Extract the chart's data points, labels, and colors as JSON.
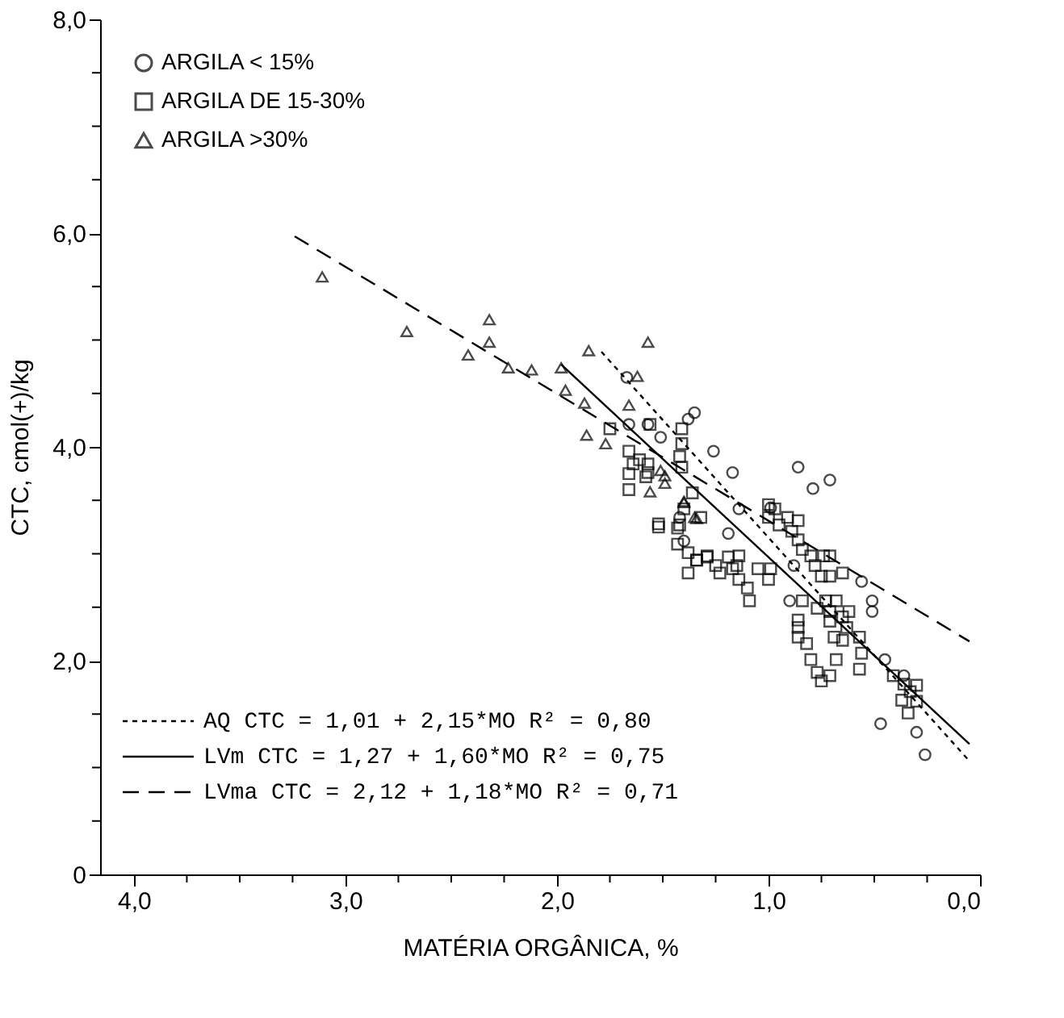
{
  "chart_data": {
    "type": "scatter",
    "xlabel": "MATÉRIA ORGÂNICA, %",
    "ylabel": "CTC, cmol(+)/kg",
    "xlim": [
      4.16,
      0.0
    ],
    "ylim": [
      0,
      8
    ],
    "xticks": [
      {
        "value": 4,
        "label": "4,0"
      },
      {
        "value": 3.75,
        "label": null
      },
      {
        "value": 3.5,
        "label": null
      },
      {
        "value": 3.25,
        "label": null
      },
      {
        "value": 3,
        "label": "3,0"
      },
      {
        "value": 2.75,
        "label": null
      },
      {
        "value": 2.5,
        "label": null
      },
      {
        "value": 2.25,
        "label": null
      },
      {
        "value": 2,
        "label": "2,0"
      },
      {
        "value": 1.75,
        "label": null
      },
      {
        "value": 1.5,
        "label": null
      },
      {
        "value": 1.25,
        "label": null
      },
      {
        "value": 1,
        "label": "1,0"
      },
      {
        "value": 0.75,
        "label": null
      },
      {
        "value": 0.5,
        "label": null
      },
      {
        "value": 0.25,
        "label": null
      },
      {
        "value": 0,
        "label": "0,0"
      }
    ],
    "yticks": [
      {
        "value": 0,
        "label": "0"
      },
      {
        "value": 0.5,
        "label": null
      },
      {
        "value": 1,
        "label": null
      },
      {
        "value": 1.5,
        "label": null
      },
      {
        "value": 2,
        "label": "2,0"
      },
      {
        "value": 2.5,
        "label": null
      },
      {
        "value": 3,
        "label": null
      },
      {
        "value": 3.5,
        "label": null
      },
      {
        "value": 4,
        "label": "4,0"
      },
      {
        "value": 4.5,
        "label": null
      },
      {
        "value": 5,
        "label": null
      },
      {
        "value": 5.5,
        "label": null
      },
      {
        "value": 6,
        "label": "6,0"
      },
      {
        "value": 6.5,
        "label": null
      },
      {
        "value": 7,
        "label": null
      },
      {
        "value": 7.5,
        "label": null
      },
      {
        "value": 8,
        "label": "8,0"
      }
    ],
    "grid": false,
    "legend": "top left",
    "series": [
      {
        "name": "ARGILA < 15%",
        "color": "#000000",
        "marker": "circle",
        "x": [
          1.67,
          1.35,
          1.38,
          1.26,
          1.57,
          1.51,
          1.66,
          1.17,
          0.86,
          0.79,
          0.71,
          1.19,
          0.56,
          0.51,
          0.51,
          0.9,
          0.45,
          0.47,
          0.3,
          0.26,
          1.14,
          0.99,
          1.42,
          1.4,
          0.88,
          0.36
        ],
        "values": [
          4.65,
          4.32,
          4.26,
          3.96,
          4.21,
          4.09,
          4.21,
          3.76,
          3.81,
          3.61,
          3.69,
          3.19,
          2.74,
          2.56,
          2.46,
          2.56,
          2.01,
          1.41,
          1.33,
          1.12,
          3.42,
          3.43,
          3.34,
          3.12,
          2.89,
          1.86
        ]
      },
      {
        "name": "ARGILA DE 15-30%",
        "color": "#000000",
        "marker": "square",
        "x": [
          1.75,
          1.66,
          1.61,
          1.66,
          1.57,
          1.66,
          1.56,
          1.41,
          1.41,
          1.42,
          1.41,
          1.36,
          1.32,
          1.52,
          1.43,
          1.43,
          1.38,
          1.34,
          1.29,
          1.38,
          1.64,
          1.57,
          1.58,
          1.4,
          1.52,
          1.42,
          1.34,
          1.29,
          1.25,
          1.19,
          1.17,
          1.14,
          1.15,
          1.23,
          1.14,
          1.05,
          0.99,
          1.0,
          1.1,
          1.09,
          1.0,
          0.97,
          1.0,
          0.91,
          0.86,
          0.95,
          0.89,
          0.86,
          0.84,
          0.8,
          0.74,
          0.71,
          0.78,
          0.75,
          0.71,
          0.65,
          0.84,
          0.86,
          0.86,
          0.86,
          0.82,
          0.8,
          0.77,
          0.77,
          0.73,
          0.71,
          0.68,
          0.65,
          0.62,
          0.71,
          0.69,
          0.63,
          0.65,
          0.57,
          0.56,
          0.57,
          0.68,
          0.75,
          0.71,
          0.36,
          0.33,
          0.37,
          0.3,
          0.34,
          0.3,
          0.41
        ],
        "values": [
          4.17,
          3.96,
          3.88,
          3.75,
          3.76,
          3.6,
          4.21,
          4.17,
          4.03,
          3.91,
          3.81,
          3.57,
          3.34,
          3.25,
          3.24,
          3.09,
          3.01,
          2.94,
          2.97,
          2.82,
          3.84,
          3.84,
          3.72,
          3.42,
          3.28,
          3.27,
          2.94,
          2.98,
          2.89,
          2.97,
          2.86,
          2.98,
          2.89,
          2.82,
          2.76,
          2.86,
          2.86,
          2.76,
          2.68,
          2.56,
          3.46,
          3.42,
          3.34,
          3.34,
          3.31,
          3.27,
          3.21,
          3.13,
          3.04,
          2.98,
          2.98,
          2.98,
          2.89,
          2.79,
          2.79,
          2.82,
          2.56,
          2.38,
          2.31,
          2.22,
          2.16,
          2.01,
          1.89,
          2.49,
          2.56,
          2.46,
          2.56,
          2.41,
          2.46,
          2.37,
          2.22,
          2.31,
          2.19,
          2.22,
          2.07,
          1.92,
          2.01,
          1.81,
          1.86,
          1.78,
          1.71,
          1.63,
          1.62,
          1.51,
          1.77,
          1.86
        ]
      },
      {
        "name": "ARGILA >30%",
        "color": "#000000",
        "marker": "triangle",
        "x": [
          3.11,
          2.71,
          2.32,
          2.32,
          2.42,
          2.23,
          2.12,
          1.98,
          1.96,
          1.87,
          1.85,
          1.57,
          1.62,
          1.66,
          1.86,
          1.77,
          1.51,
          1.49,
          1.56,
          1.4,
          1.35,
          1.49,
          1.4,
          1.34
        ],
        "values": [
          5.59,
          5.08,
          5.19,
          4.98,
          4.86,
          4.74,
          4.72,
          4.74,
          4.53,
          4.41,
          4.9,
          4.98,
          4.66,
          4.39,
          4.11,
          4.03,
          3.78,
          3.66,
          3.58,
          3.49,
          3.34,
          3.73,
          3.48,
          3.33
        ]
      },
      {
        "type": "line",
        "name": "AQ    CTC = 1,01  +  2,15*MO  R² = 0,80",
        "color": "#000000",
        "line_style": "dotted",
        "x": [
          1.79,
          0.05
        ],
        "values": [
          4.89,
          1.06
        ]
      },
      {
        "type": "line",
        "name": "LVm   CTC = 1,27  +  1,60*MO  R² = 0,75",
        "color": "#000000",
        "line_style": "solid",
        "x": [
          1.98,
          0.05
        ],
        "values": [
          4.77,
          1.22
        ]
      },
      {
        "type": "line",
        "name": "LVma  CTC = 2,12  +  1,18*MO  R² = 0,71",
        "color": "#000000",
        "line_style": "dashed",
        "x": [
          3.24,
          0.05
        ],
        "values": [
          5.97,
          2.18
        ]
      }
    ]
  }
}
